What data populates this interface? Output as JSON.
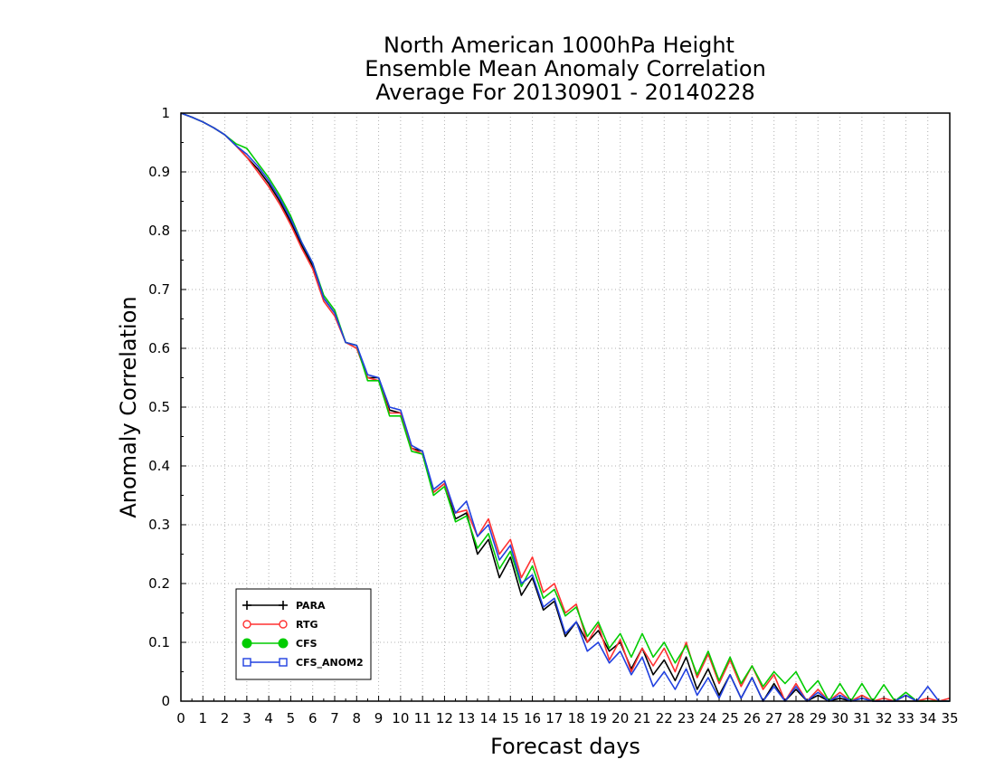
{
  "chart_data": {
    "type": "line",
    "title": [
      "North American 1000hPa Height",
      "Ensemble Mean Anomaly Correlation",
      "Average For 20130901 - 20140228"
    ],
    "xlabel": "Forecast days",
    "ylabel": "Anomaly Correlation",
    "xlim": [
      0,
      35
    ],
    "ylim": [
      0,
      1
    ],
    "xticks": [
      0,
      1,
      2,
      3,
      4,
      5,
      6,
      7,
      8,
      9,
      10,
      11,
      12,
      13,
      14,
      15,
      16,
      17,
      18,
      19,
      20,
      21,
      22,
      23,
      24,
      25,
      26,
      27,
      28,
      29,
      30,
      31,
      32,
      33,
      34,
      35
    ],
    "yticks": [
      0,
      0.1,
      0.2,
      0.3,
      0.4,
      0.5,
      0.6,
      0.7,
      0.8,
      0.9,
      1
    ],
    "ytick_labels": [
      "0",
      "0.1",
      "0.2",
      "0.3",
      "0.4",
      "0.5",
      "0.6",
      "0.7",
      "0.8",
      "0.9",
      "1"
    ],
    "grid": true,
    "legend_position": "bottom-left",
    "series": [
      {
        "name": "PARA",
        "color": "#000000",
        "marker": "cross",
        "x": [
          0,
          0.5,
          1,
          1.5,
          2,
          2.5,
          3,
          3.5,
          4,
          4.5,
          5,
          5.5,
          6,
          6.5,
          7,
          7.5,
          8,
          8.5,
          9,
          9.5,
          10,
          10.5,
          11,
          11.5,
          12,
          12.5,
          13,
          13.5,
          14,
          14.5,
          15,
          15.5,
          16,
          16.5,
          17,
          17.5,
          18,
          18.5,
          19,
          19.5,
          20,
          20.5,
          21,
          21.5,
          22,
          22.5,
          23,
          23.5,
          24,
          24.5,
          25,
          25.5,
          26,
          26.5,
          27,
          27.5,
          28,
          28.5,
          29,
          29.5,
          30,
          30.5,
          31,
          31.5,
          32,
          32.5,
          33,
          33.5,
          34,
          34.5,
          35
        ],
        "values": [
          1.0,
          0.993,
          0.985,
          0.975,
          0.963,
          0.945,
          0.925,
          0.905,
          0.88,
          0.85,
          0.815,
          0.775,
          0.74,
          0.685,
          0.66,
          0.61,
          0.605,
          0.55,
          0.55,
          0.495,
          0.49,
          0.43,
          0.425,
          0.355,
          0.37,
          0.31,
          0.32,
          0.25,
          0.275,
          0.21,
          0.245,
          0.18,
          0.21,
          0.155,
          0.17,
          0.11,
          0.135,
          0.1,
          0.12,
          0.085,
          0.1,
          0.055,
          0.09,
          0.045,
          0.07,
          0.035,
          0.075,
          0.02,
          0.055,
          0.01,
          0.045,
          0.005,
          0.04,
          0.0,
          0.03,
          0.0,
          0.02,
          0.0,
          0.01,
          0.0,
          0.005,
          0.0,
          0.005,
          0.0,
          0.0,
          0.0,
          0.0,
          0.0,
          0.0,
          0.0,
          0.0
        ]
      },
      {
        "name": "RTG",
        "color": "#ff3030",
        "marker": "circle-open",
        "x": [
          0,
          0.5,
          1,
          1.5,
          2,
          2.5,
          3,
          3.5,
          4,
          4.5,
          5,
          5.5,
          6,
          6.5,
          7,
          7.5,
          8,
          8.5,
          9,
          9.5,
          10,
          10.5,
          11,
          11.5,
          12,
          12.5,
          13,
          13.5,
          14,
          14.5,
          15,
          15.5,
          16,
          16.5,
          17,
          17.5,
          18,
          18.5,
          19,
          19.5,
          20,
          20.5,
          21,
          21.5,
          22,
          22.5,
          23,
          23.5,
          24,
          24.5,
          25,
          25.5,
          26,
          26.5,
          27,
          27.5,
          28,
          28.5,
          29,
          29.5,
          30,
          30.5,
          31,
          31.5,
          32,
          32.5,
          33,
          33.5,
          34,
          34.5,
          35
        ],
        "values": [
          1.0,
          0.993,
          0.985,
          0.975,
          0.963,
          0.945,
          0.925,
          0.9,
          0.875,
          0.845,
          0.81,
          0.77,
          0.735,
          0.68,
          0.655,
          0.61,
          0.6,
          0.55,
          0.545,
          0.49,
          0.49,
          0.43,
          0.42,
          0.355,
          0.37,
          0.32,
          0.325,
          0.28,
          0.31,
          0.25,
          0.275,
          0.21,
          0.245,
          0.185,
          0.2,
          0.15,
          0.165,
          0.1,
          0.13,
          0.07,
          0.105,
          0.05,
          0.09,
          0.06,
          0.09,
          0.05,
          0.1,
          0.04,
          0.08,
          0.03,
          0.07,
          0.025,
          0.06,
          0.02,
          0.045,
          0.0,
          0.03,
          0.0,
          0.02,
          0.0,
          0.015,
          0.0,
          0.01,
          0.0,
          0.005,
          0.0,
          0.01,
          0.0,
          0.005,
          0.0,
          0.005
        ]
      },
      {
        "name": "CFS",
        "color": "#00cc00",
        "marker": "circle-filled",
        "x": [
          0,
          0.5,
          1,
          1.5,
          2,
          2.5,
          3,
          3.5,
          4,
          4.5,
          5,
          5.5,
          6,
          6.5,
          7,
          7.5,
          8,
          8.5,
          9,
          9.5,
          10,
          10.5,
          11,
          11.5,
          12,
          12.5,
          13,
          13.5,
          14,
          14.5,
          15,
          15.5,
          16,
          16.5,
          17,
          17.5,
          18,
          18.5,
          19,
          19.5,
          20,
          20.5,
          21,
          21.5,
          22,
          22.5,
          23,
          23.5,
          24,
          24.5,
          25,
          25.5,
          26,
          26.5,
          27,
          27.5,
          28,
          28.5,
          29,
          29.5,
          30,
          30.5,
          31,
          31.5,
          32,
          32.5,
          33,
          33.5,
          34,
          34.5,
          35
        ],
        "values": [
          1.0,
          0.993,
          0.985,
          0.975,
          0.963,
          0.948,
          0.94,
          0.915,
          0.89,
          0.86,
          0.825,
          0.78,
          0.745,
          0.69,
          0.665,
          0.61,
          0.605,
          0.545,
          0.545,
          0.485,
          0.485,
          0.425,
          0.42,
          0.35,
          0.365,
          0.305,
          0.315,
          0.26,
          0.285,
          0.225,
          0.255,
          0.195,
          0.23,
          0.175,
          0.19,
          0.145,
          0.16,
          0.11,
          0.135,
          0.09,
          0.115,
          0.075,
          0.115,
          0.075,
          0.1,
          0.065,
          0.095,
          0.045,
          0.085,
          0.035,
          0.075,
          0.03,
          0.06,
          0.025,
          0.05,
          0.03,
          0.05,
          0.015,
          0.035,
          0.0,
          0.03,
          0.0,
          0.03,
          0.0,
          0.028,
          0.0,
          0.015,
          0.0,
          0.0,
          0.0,
          0.0
        ]
      },
      {
        "name": "CFS_ANOM2",
        "color": "#2040e0",
        "marker": "square-open",
        "x": [
          0,
          0.5,
          1,
          1.5,
          2,
          2.5,
          3,
          3.5,
          4,
          4.5,
          5,
          5.5,
          6,
          6.5,
          7,
          7.5,
          8,
          8.5,
          9,
          9.5,
          10,
          10.5,
          11,
          11.5,
          12,
          12.5,
          13,
          13.5,
          14,
          14.5,
          15,
          15.5,
          16,
          16.5,
          17,
          17.5,
          18,
          18.5,
          19,
          19.5,
          20,
          20.5,
          21,
          21.5,
          22,
          22.5,
          23,
          23.5,
          24,
          24.5,
          25,
          25.5,
          26,
          26.5,
          27,
          27.5,
          28,
          28.5,
          29,
          29.5,
          30,
          30.5,
          31,
          31.5,
          32,
          32.5,
          33,
          33.5,
          34,
          34.5,
          35
        ],
        "values": [
          1.0,
          0.993,
          0.985,
          0.975,
          0.963,
          0.945,
          0.93,
          0.91,
          0.885,
          0.855,
          0.82,
          0.78,
          0.745,
          0.685,
          0.66,
          0.61,
          0.605,
          0.555,
          0.55,
          0.5,
          0.495,
          0.435,
          0.425,
          0.36,
          0.375,
          0.32,
          0.34,
          0.28,
          0.3,
          0.24,
          0.265,
          0.2,
          0.215,
          0.16,
          0.175,
          0.115,
          0.135,
          0.085,
          0.1,
          0.065,
          0.085,
          0.045,
          0.075,
          0.025,
          0.05,
          0.02,
          0.055,
          0.01,
          0.04,
          0.005,
          0.045,
          0.005,
          0.04,
          0.0,
          0.025,
          0.0,
          0.025,
          0.0,
          0.015,
          0.0,
          0.01,
          0.0,
          0.005,
          0.0,
          0.0,
          0.0,
          0.01,
          0.0,
          0.025,
          0.0,
          0.0
        ]
      }
    ]
  }
}
